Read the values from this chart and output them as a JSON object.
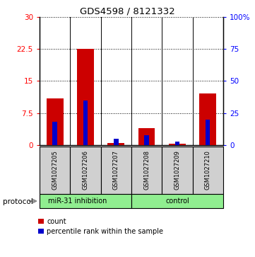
{
  "title": "GDS4598 / 8121332",
  "samples": [
    "GSM1027205",
    "GSM1027206",
    "GSM1027207",
    "GSM1027208",
    "GSM1027209",
    "GSM1027210"
  ],
  "count_values": [
    11.0,
    22.5,
    0.5,
    4.0,
    0.3,
    12.0
  ],
  "percentile_values": [
    18.0,
    35.0,
    5.0,
    8.0,
    3.0,
    20.0
  ],
  "ylim_left": [
    0,
    30
  ],
  "ylim_right": [
    0,
    100
  ],
  "yticks_left": [
    0,
    7.5,
    15,
    22.5,
    30
  ],
  "yticks_right": [
    0,
    25,
    50,
    75,
    100
  ],
  "yticklabels_left": [
    "0",
    "7.5",
    "15",
    "22.5",
    "30"
  ],
  "yticklabels_right": [
    "0",
    "25",
    "50",
    "75",
    "100%"
  ],
  "bar_color": "#cc0000",
  "percentile_color": "#0000cc",
  "sample_box_color": "#d0d0d0",
  "protocol_label": "protocol",
  "group_inhibition": "miR-31 inhibition",
  "group_control": "control",
  "group_color": "#90ee90",
  "inhibition_count": 3,
  "legend_count": "count",
  "legend_percentile": "percentile rank within the sample",
  "bar_width": 0.55,
  "blue_bar_width": 0.15
}
